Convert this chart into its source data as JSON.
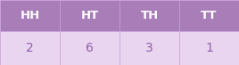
{
  "headers": [
    "HH",
    "HT",
    "TH",
    "TT"
  ],
  "values": [
    "2",
    "6",
    "3",
    "1"
  ],
  "header_bg": "#a87db8",
  "data_bg": "#e9d5f0",
  "header_text_color": "#ffffff",
  "data_text_color": "#9060a8",
  "border_color": "#c8a0d8",
  "header_fontsize": 9.5,
  "data_fontsize": 10,
  "fig_width": 2.68,
  "fig_height": 0.73,
  "dpi": 100
}
